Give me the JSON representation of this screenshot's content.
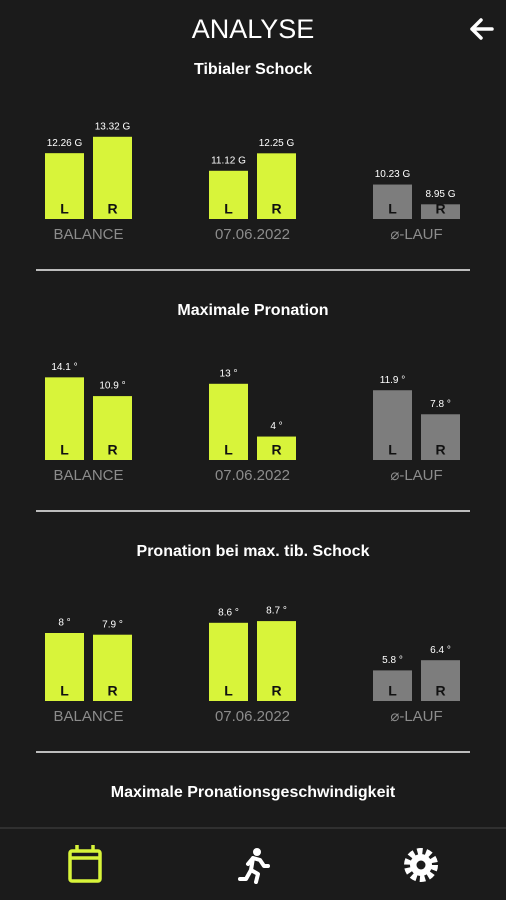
{
  "header": {
    "title": "ANALYSE"
  },
  "sections": [
    {
      "title": "Tibialer Schock",
      "ylim": [
        8,
        13.5
      ],
      "groups": [
        {
          "caption": "BALANCE",
          "color": "#d8f43a",
          "letters": [
            "L",
            "R"
          ],
          "values": [
            12.26,
            13.32
          ],
          "value_labels": [
            "12.26 G",
            "13.32 G"
          ]
        },
        {
          "caption": "07.06.2022",
          "color": "#d8f43a",
          "letters": [
            "L",
            "R"
          ],
          "values": [
            11.12,
            12.25
          ],
          "value_labels": [
            "11.12 G",
            "12.25 G"
          ]
        },
        {
          "caption": "⌀-LAUF",
          "color": "#7d7d7d",
          "letters": [
            "L",
            "R"
          ],
          "values": [
            10.23,
            8.95
          ],
          "value_labels": [
            "10.23 G",
            "8.95 G"
          ]
        }
      ]
    },
    {
      "title": "Maximale Pronation",
      "ylim": [
        0,
        14.5
      ],
      "groups": [
        {
          "caption": "BALANCE",
          "color": "#d8f43a",
          "letters": [
            "L",
            "R"
          ],
          "values": [
            14.1,
            10.9
          ],
          "value_labels": [
            "14.1 °",
            "10.9 °"
          ]
        },
        {
          "caption": "07.06.2022",
          "color": "#d8f43a",
          "letters": [
            "L",
            "R"
          ],
          "values": [
            13,
            4
          ],
          "value_labels": [
            "13 °",
            "4 °"
          ]
        },
        {
          "caption": "⌀-LAUF",
          "color": "#7d7d7d",
          "letters": [
            "L",
            "R"
          ],
          "values": [
            11.9,
            7.8
          ],
          "value_labels": [
            "11.9 °",
            "7.8 °"
          ]
        }
      ]
    },
    {
      "title": "Pronation bei max. tib. Schock",
      "ylim": [
        4,
        9
      ],
      "groups": [
        {
          "caption": "BALANCE",
          "color": "#d8f43a",
          "letters": [
            "L",
            "R"
          ],
          "values": [
            8,
            7.9
          ],
          "value_labels": [
            "8 °",
            "7.9 °"
          ]
        },
        {
          "caption": "07.06.2022",
          "color": "#d8f43a",
          "letters": [
            "L",
            "R"
          ],
          "values": [
            8.6,
            8.7
          ],
          "value_labels": [
            "8.6 °",
            "8.7 °"
          ]
        },
        {
          "caption": "⌀-LAUF",
          "color": "#7d7d7d",
          "letters": [
            "L",
            "R"
          ],
          "values": [
            5.8,
            6.4
          ],
          "value_labels": [
            "5.8 °",
            "6.4 °"
          ]
        }
      ]
    },
    {
      "title": "Maximale Pronationsgeschwindigkeit"
    }
  ]
}
